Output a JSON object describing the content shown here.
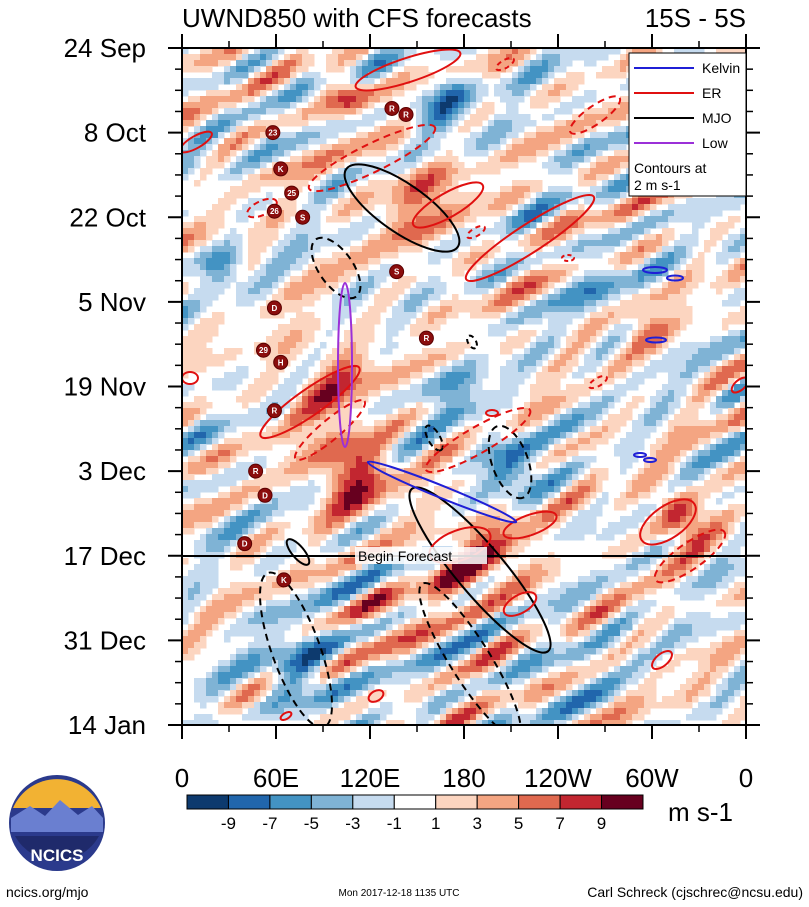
{
  "chart_data": {
    "type": "heatmap",
    "title": "UWND850 with CFS forecasts",
    "region": "15S - 5S",
    "xlabel": "",
    "ylabel": "",
    "x_ticks": [
      "0",
      "60E",
      "120E",
      "180",
      "120W",
      "60W",
      "0"
    ],
    "x_range_deg": [
      0,
      360
    ],
    "y_ticks": [
      "24 Sep",
      "8 Oct",
      "22 Oct",
      "5 Nov",
      "19 Nov",
      "3 Dec",
      "17 Dec",
      "31 Dec",
      "14 Jan"
    ],
    "forecast_line": {
      "label": "Begin Forecast",
      "date": "17 Dec"
    },
    "colorbar": {
      "labels": [
        "-9",
        "-7",
        "-5",
        "-3",
        "-1",
        "1",
        "3",
        "5",
        "7",
        "9"
      ],
      "units": "m s-1",
      "colors": [
        "#0d3a6e",
        "#2166ac",
        "#4393c3",
        "#7fb3d5",
        "#c6dbef",
        "#ffffff",
        "#fcd5c0",
        "#f4a582",
        "#e0694f",
        "#c22630",
        "#67001f"
      ]
    },
    "legend": {
      "entries": [
        {
          "name": "Kelvin",
          "color": "#1f1fd6"
        },
        {
          "name": "ER",
          "color": "#e01010"
        },
        {
          "name": "MJO",
          "color": "#000000"
        },
        {
          "name": "Low",
          "color": "#9b30d8"
        }
      ],
      "note_line1": "Contours at",
      "note_line2": "2 m s-1"
    }
  },
  "logo": {
    "text": "NCICS"
  },
  "footer": {
    "left": "ncics.org/mjo",
    "center": "Mon 2017-12-18 1135 UTC",
    "right": "Carl Schreck (cjschrec@ncsu.edu)"
  },
  "storms": [
    {
      "label": "23",
      "lon": 58,
      "day": 14
    },
    {
      "label": "K",
      "lon": 63,
      "day": 20
    },
    {
      "label": "25",
      "lon": 70,
      "day": 24
    },
    {
      "label": "26",
      "lon": 59,
      "day": 27
    },
    {
      "label": "S",
      "lon": 77,
      "day": 28
    },
    {
      "label": "R",
      "lon": 134,
      "day": 10
    },
    {
      "label": "R",
      "lon": 143,
      "day": 11
    },
    {
      "label": "S",
      "lon": 137,
      "day": 37
    },
    {
      "label": "D",
      "lon": 59,
      "day": 43
    },
    {
      "label": "29",
      "lon": 52,
      "day": 50
    },
    {
      "label": "H",
      "lon": 63,
      "day": 52
    },
    {
      "label": "R",
      "lon": 156,
      "day": 48
    },
    {
      "label": "R",
      "lon": 59,
      "day": 60
    },
    {
      "label": "D",
      "lon": 53,
      "day": 74
    },
    {
      "label": "K",
      "lon": 65,
      "day": 88
    },
    {
      "label": "D",
      "lon": 40,
      "day": 82
    },
    {
      "label": "R",
      "lon": 47,
      "day": 70
    }
  ]
}
